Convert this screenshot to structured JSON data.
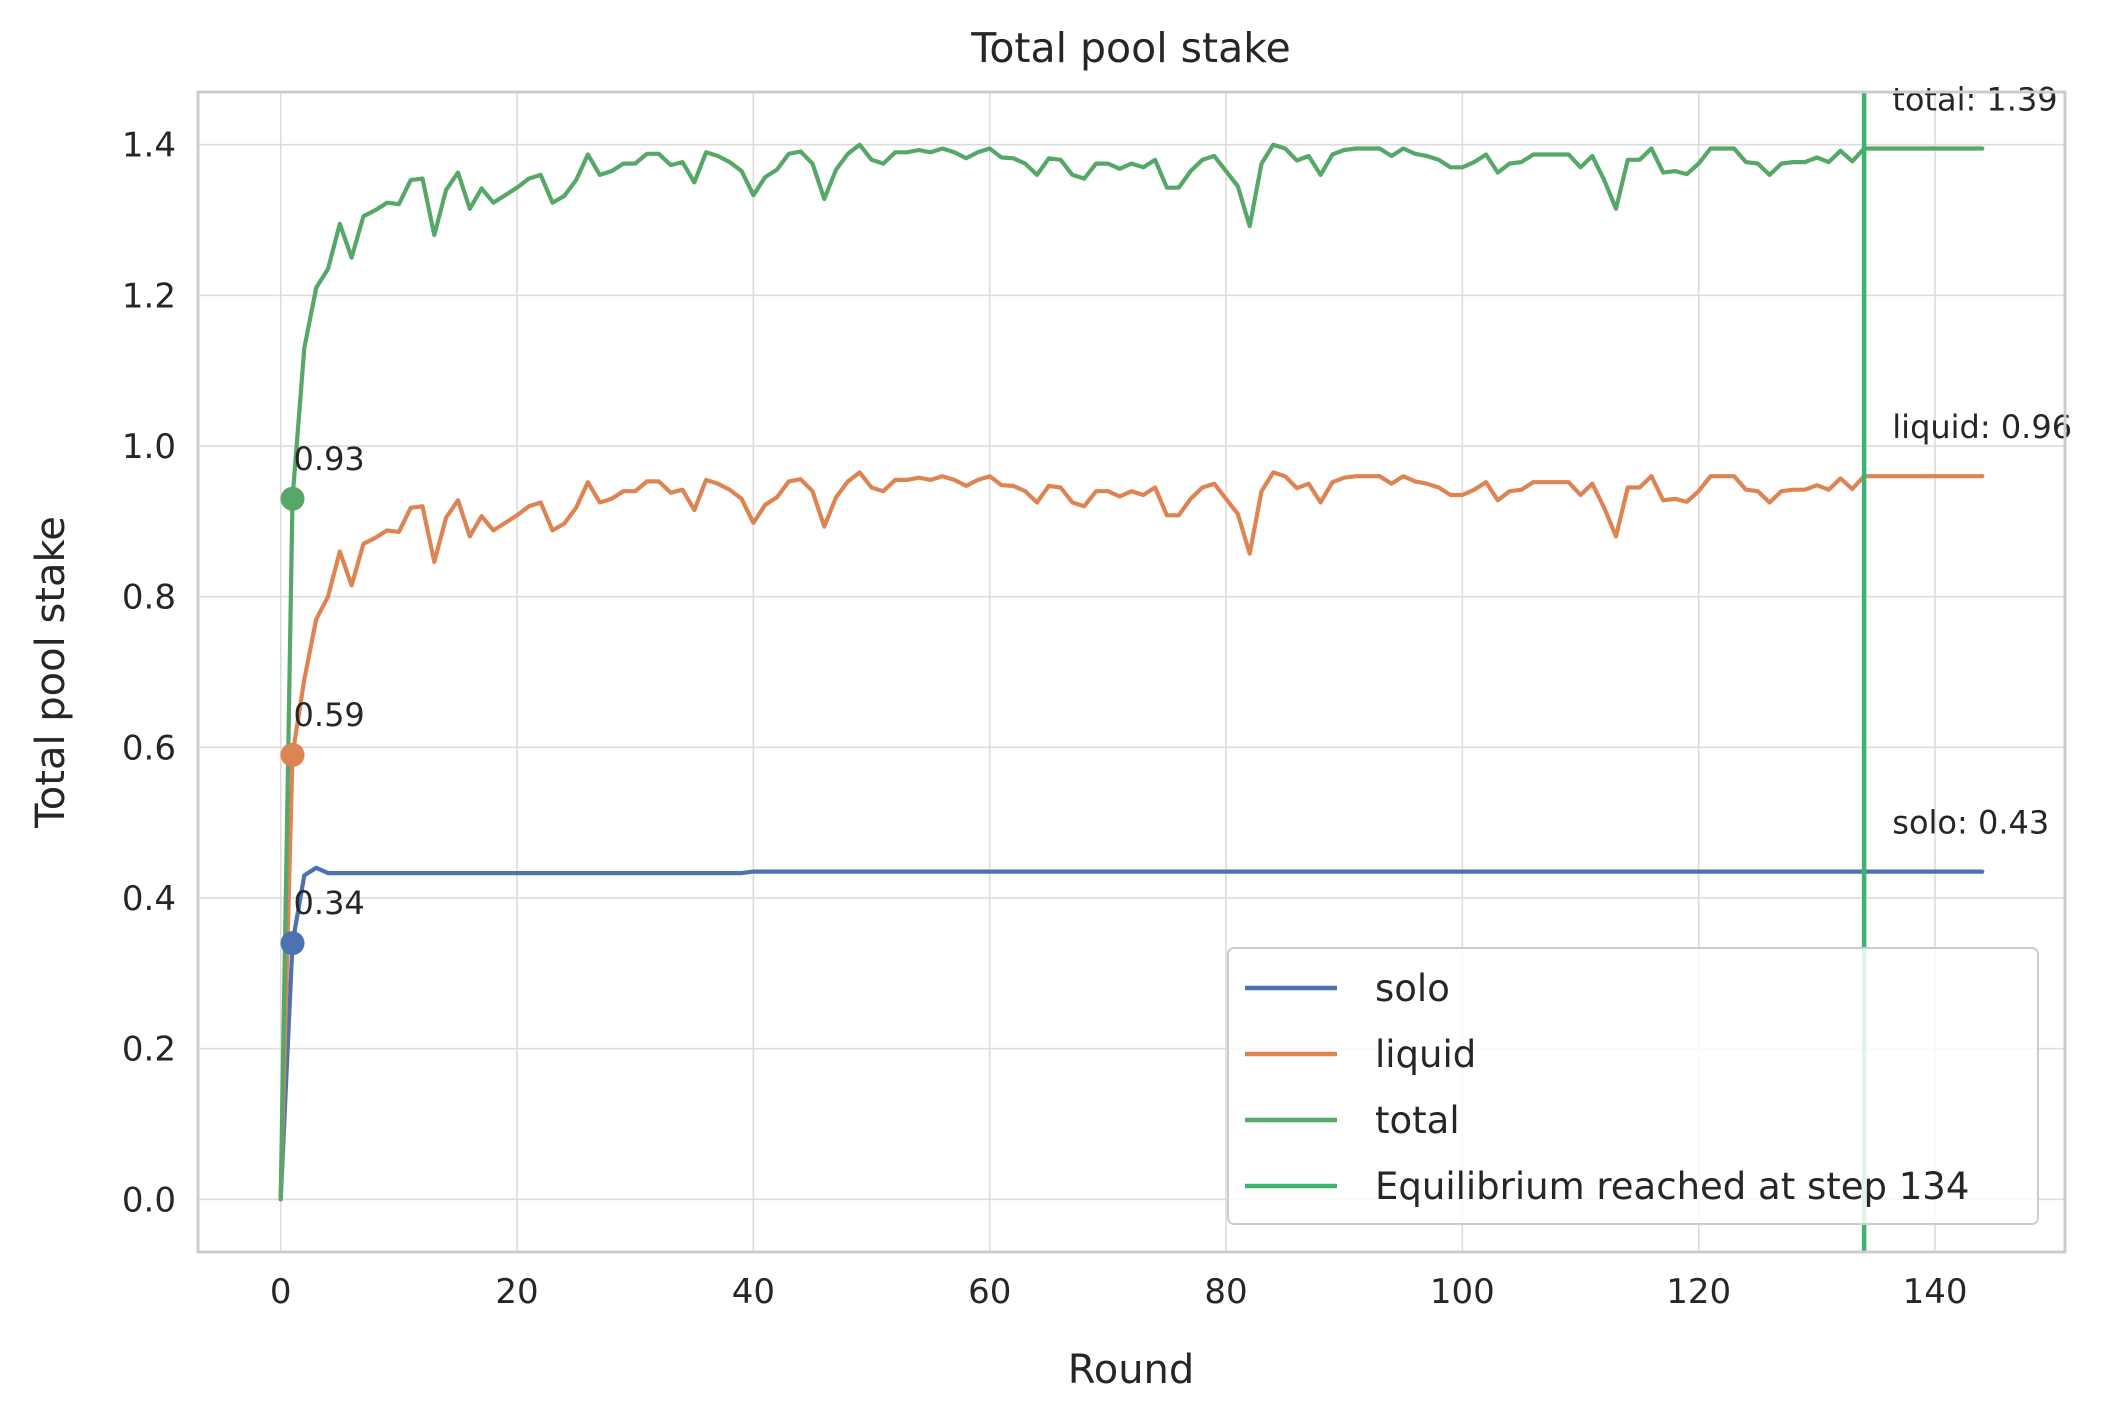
{
  "chart_data": {
    "type": "line",
    "title": "Total pool stake",
    "xlabel": "Round",
    "ylabel": "Total pool stake",
    "xlim": [
      -7,
      151
    ],
    "ylim": [
      -0.07,
      1.47
    ],
    "xticks": [
      0,
      20,
      40,
      60,
      80,
      100,
      120,
      140
    ],
    "yticks": [
      0.0,
      0.2,
      0.4,
      0.6,
      0.8,
      1.0,
      1.2,
      1.4
    ],
    "xtick_labels": [
      "0",
      "20",
      "40",
      "60",
      "80",
      "100",
      "120",
      "140"
    ],
    "ytick_labels": [
      "0.0",
      "0.2",
      "0.4",
      "0.6",
      "0.8",
      "1.0",
      "1.2",
      "1.4"
    ],
    "grid": true,
    "legend_position": "lower-right",
    "series": [
      {
        "name": "solo",
        "color": "#4c72b0",
        "x": [
          0,
          1,
          2,
          3,
          4,
          5,
          10,
          20,
          30,
          39,
          40,
          60,
          80,
          100,
          120,
          134,
          144
        ],
        "y": [
          0.0,
          0.34,
          0.43,
          0.44,
          0.433,
          0.433,
          0.433,
          0.433,
          0.433,
          0.433,
          0.435,
          0.435,
          0.435,
          0.435,
          0.435,
          0.435,
          0.435
        ]
      },
      {
        "name": "liquid",
        "color": "#dd8452",
        "x": [
          0,
          1,
          2,
          3,
          4,
          5,
          6,
          7,
          8,
          9,
          10,
          11,
          12,
          13,
          14,
          15,
          16,
          17,
          18,
          19,
          20,
          21,
          22,
          23,
          24,
          25,
          26,
          27,
          28,
          29,
          30,
          31,
          32,
          33,
          34,
          35,
          36,
          37,
          38,
          39,
          40,
          41,
          42,
          43,
          44,
          45,
          46,
          47,
          48,
          49,
          50,
          51,
          52,
          53,
          54,
          55,
          56,
          57,
          58,
          59,
          60,
          61,
          62,
          63,
          64,
          65,
          66,
          67,
          68,
          69,
          70,
          71,
          72,
          73,
          74,
          75,
          76,
          77,
          78,
          79,
          80,
          81,
          82,
          83,
          84,
          85,
          86,
          87,
          88,
          89,
          90,
          91,
          92,
          93,
          94,
          95,
          96,
          97,
          98,
          99,
          100,
          101,
          102,
          103,
          104,
          105,
          106,
          107,
          108,
          109,
          110,
          111,
          112,
          113,
          114,
          115,
          116,
          117,
          118,
          119,
          120,
          121,
          122,
          123,
          124,
          125,
          126,
          127,
          128,
          129,
          130,
          131,
          132,
          133,
          134,
          144
        ],
        "y": [
          0.0,
          0.59,
          0.69,
          0.77,
          0.8,
          0.86,
          0.815,
          0.87,
          0.878,
          0.888,
          0.886,
          0.918,
          0.92,
          0.846,
          0.905,
          0.928,
          0.88,
          0.907,
          0.888,
          0.898,
          0.908,
          0.92,
          0.925,
          0.888,
          0.897,
          0.918,
          0.952,
          0.925,
          0.93,
          0.94,
          0.94,
          0.953,
          0.953,
          0.938,
          0.942,
          0.915,
          0.955,
          0.95,
          0.942,
          0.93,
          0.898,
          0.922,
          0.932,
          0.953,
          0.956,
          0.94,
          0.893,
          0.932,
          0.953,
          0.965,
          0.945,
          0.94,
          0.955,
          0.955,
          0.958,
          0.955,
          0.96,
          0.955,
          0.947,
          0.955,
          0.96,
          0.948,
          0.947,
          0.94,
          0.925,
          0.947,
          0.945,
          0.925,
          0.92,
          0.94,
          0.94,
          0.933,
          0.94,
          0.935,
          0.945,
          0.908,
          0.908,
          0.93,
          0.945,
          0.95,
          0.93,
          0.91,
          0.857,
          0.94,
          0.965,
          0.96,
          0.944,
          0.95,
          0.925,
          0.952,
          0.958,
          0.96,
          0.96,
          0.96,
          0.95,
          0.96,
          0.953,
          0.95,
          0.945,
          0.935,
          0.935,
          0.942,
          0.952,
          0.928,
          0.94,
          0.942,
          0.952,
          0.952,
          0.952,
          0.952,
          0.935,
          0.95,
          0.918,
          0.88,
          0.945,
          0.945,
          0.96,
          0.928,
          0.93,
          0.926,
          0.94,
          0.96,
          0.96,
          0.96,
          0.942,
          0.94,
          0.925,
          0.94,
          0.942,
          0.942,
          0.948,
          0.942,
          0.957,
          0.943,
          0.96,
          0.96
        ]
      },
      {
        "name": "total",
        "color": "#55a868",
        "x": [
          0,
          1,
          2,
          3,
          4,
          5,
          6,
          7,
          8,
          9,
          10,
          11,
          12,
          13,
          14,
          15,
          16,
          17,
          18,
          19,
          20,
          21,
          22,
          23,
          24,
          25,
          26,
          27,
          28,
          29,
          30,
          31,
          32,
          33,
          34,
          35,
          36,
          37,
          38,
          39,
          40,
          41,
          42,
          43,
          44,
          45,
          46,
          47,
          48,
          49,
          50,
          51,
          52,
          53,
          54,
          55,
          56,
          57,
          58,
          59,
          60,
          61,
          62,
          63,
          64,
          65,
          66,
          67,
          68,
          69,
          70,
          71,
          72,
          73,
          74,
          75,
          76,
          77,
          78,
          79,
          80,
          81,
          82,
          83,
          84,
          85,
          86,
          87,
          88,
          89,
          90,
          91,
          92,
          93,
          94,
          95,
          96,
          97,
          98,
          99,
          100,
          101,
          102,
          103,
          104,
          105,
          106,
          107,
          108,
          109,
          110,
          111,
          112,
          113,
          114,
          115,
          116,
          117,
          118,
          119,
          120,
          121,
          122,
          123,
          124,
          125,
          126,
          127,
          128,
          129,
          130,
          131,
          132,
          133,
          134,
          144
        ],
        "y": [
          0.0,
          0.93,
          1.13,
          1.21,
          1.235,
          1.295,
          1.25,
          1.305,
          1.313,
          1.323,
          1.321,
          1.353,
          1.355,
          1.28,
          1.34,
          1.363,
          1.315,
          1.342,
          1.323,
          1.333,
          1.343,
          1.355,
          1.36,
          1.323,
          1.332,
          1.353,
          1.387,
          1.36,
          1.365,
          1.375,
          1.375,
          1.388,
          1.388,
          1.373,
          1.377,
          1.35,
          1.39,
          1.385,
          1.377,
          1.365,
          1.333,
          1.357,
          1.367,
          1.388,
          1.391,
          1.375,
          1.328,
          1.367,
          1.388,
          1.4,
          1.38,
          1.375,
          1.39,
          1.39,
          1.393,
          1.39,
          1.395,
          1.39,
          1.382,
          1.39,
          1.395,
          1.383,
          1.382,
          1.375,
          1.36,
          1.382,
          1.38,
          1.36,
          1.355,
          1.375,
          1.375,
          1.368,
          1.375,
          1.37,
          1.38,
          1.343,
          1.343,
          1.365,
          1.38,
          1.385,
          1.365,
          1.345,
          1.292,
          1.375,
          1.4,
          1.395,
          1.379,
          1.385,
          1.36,
          1.387,
          1.393,
          1.395,
          1.395,
          1.395,
          1.385,
          1.395,
          1.388,
          1.385,
          1.38,
          1.37,
          1.37,
          1.377,
          1.387,
          1.363,
          1.375,
          1.377,
          1.387,
          1.387,
          1.387,
          1.387,
          1.37,
          1.385,
          1.353,
          1.315,
          1.38,
          1.38,
          1.395,
          1.363,
          1.365,
          1.361,
          1.375,
          1.395,
          1.395,
          1.395,
          1.377,
          1.375,
          1.36,
          1.375,
          1.377,
          1.377,
          1.383,
          1.377,
          1.392,
          1.378,
          1.395,
          1.395
        ]
      }
    ],
    "start_markers": [
      {
        "series": "solo",
        "x": 1,
        "y": 0.34,
        "label": "0.34",
        "color": "#4c72b0"
      },
      {
        "series": "liquid",
        "x": 1,
        "y": 0.59,
        "label": "0.59",
        "color": "#dd8452"
      },
      {
        "series": "total",
        "x": 1,
        "y": 0.93,
        "label": "0.93",
        "color": "#55a868"
      }
    ],
    "end_labels": [
      {
        "series": "total",
        "x": 144,
        "y": 1.395,
        "label": "total: 1.39"
      },
      {
        "series": "liquid",
        "x": 144,
        "y": 0.96,
        "label": "liquid: 0.96"
      },
      {
        "series": "solo",
        "x": 144,
        "y": 0.435,
        "label": "solo: 0.43"
      }
    ],
    "vline": {
      "x": 134,
      "color": "#3cb371",
      "label": "Equilibrium reached at step 134"
    },
    "legend": [
      {
        "label": "solo",
        "color": "#4c72b0"
      },
      {
        "label": "liquid",
        "color": "#dd8452"
      },
      {
        "label": "total",
        "color": "#55a868"
      },
      {
        "label": "Equilibrium reached at step 134",
        "color": "#3cb371"
      }
    ]
  }
}
